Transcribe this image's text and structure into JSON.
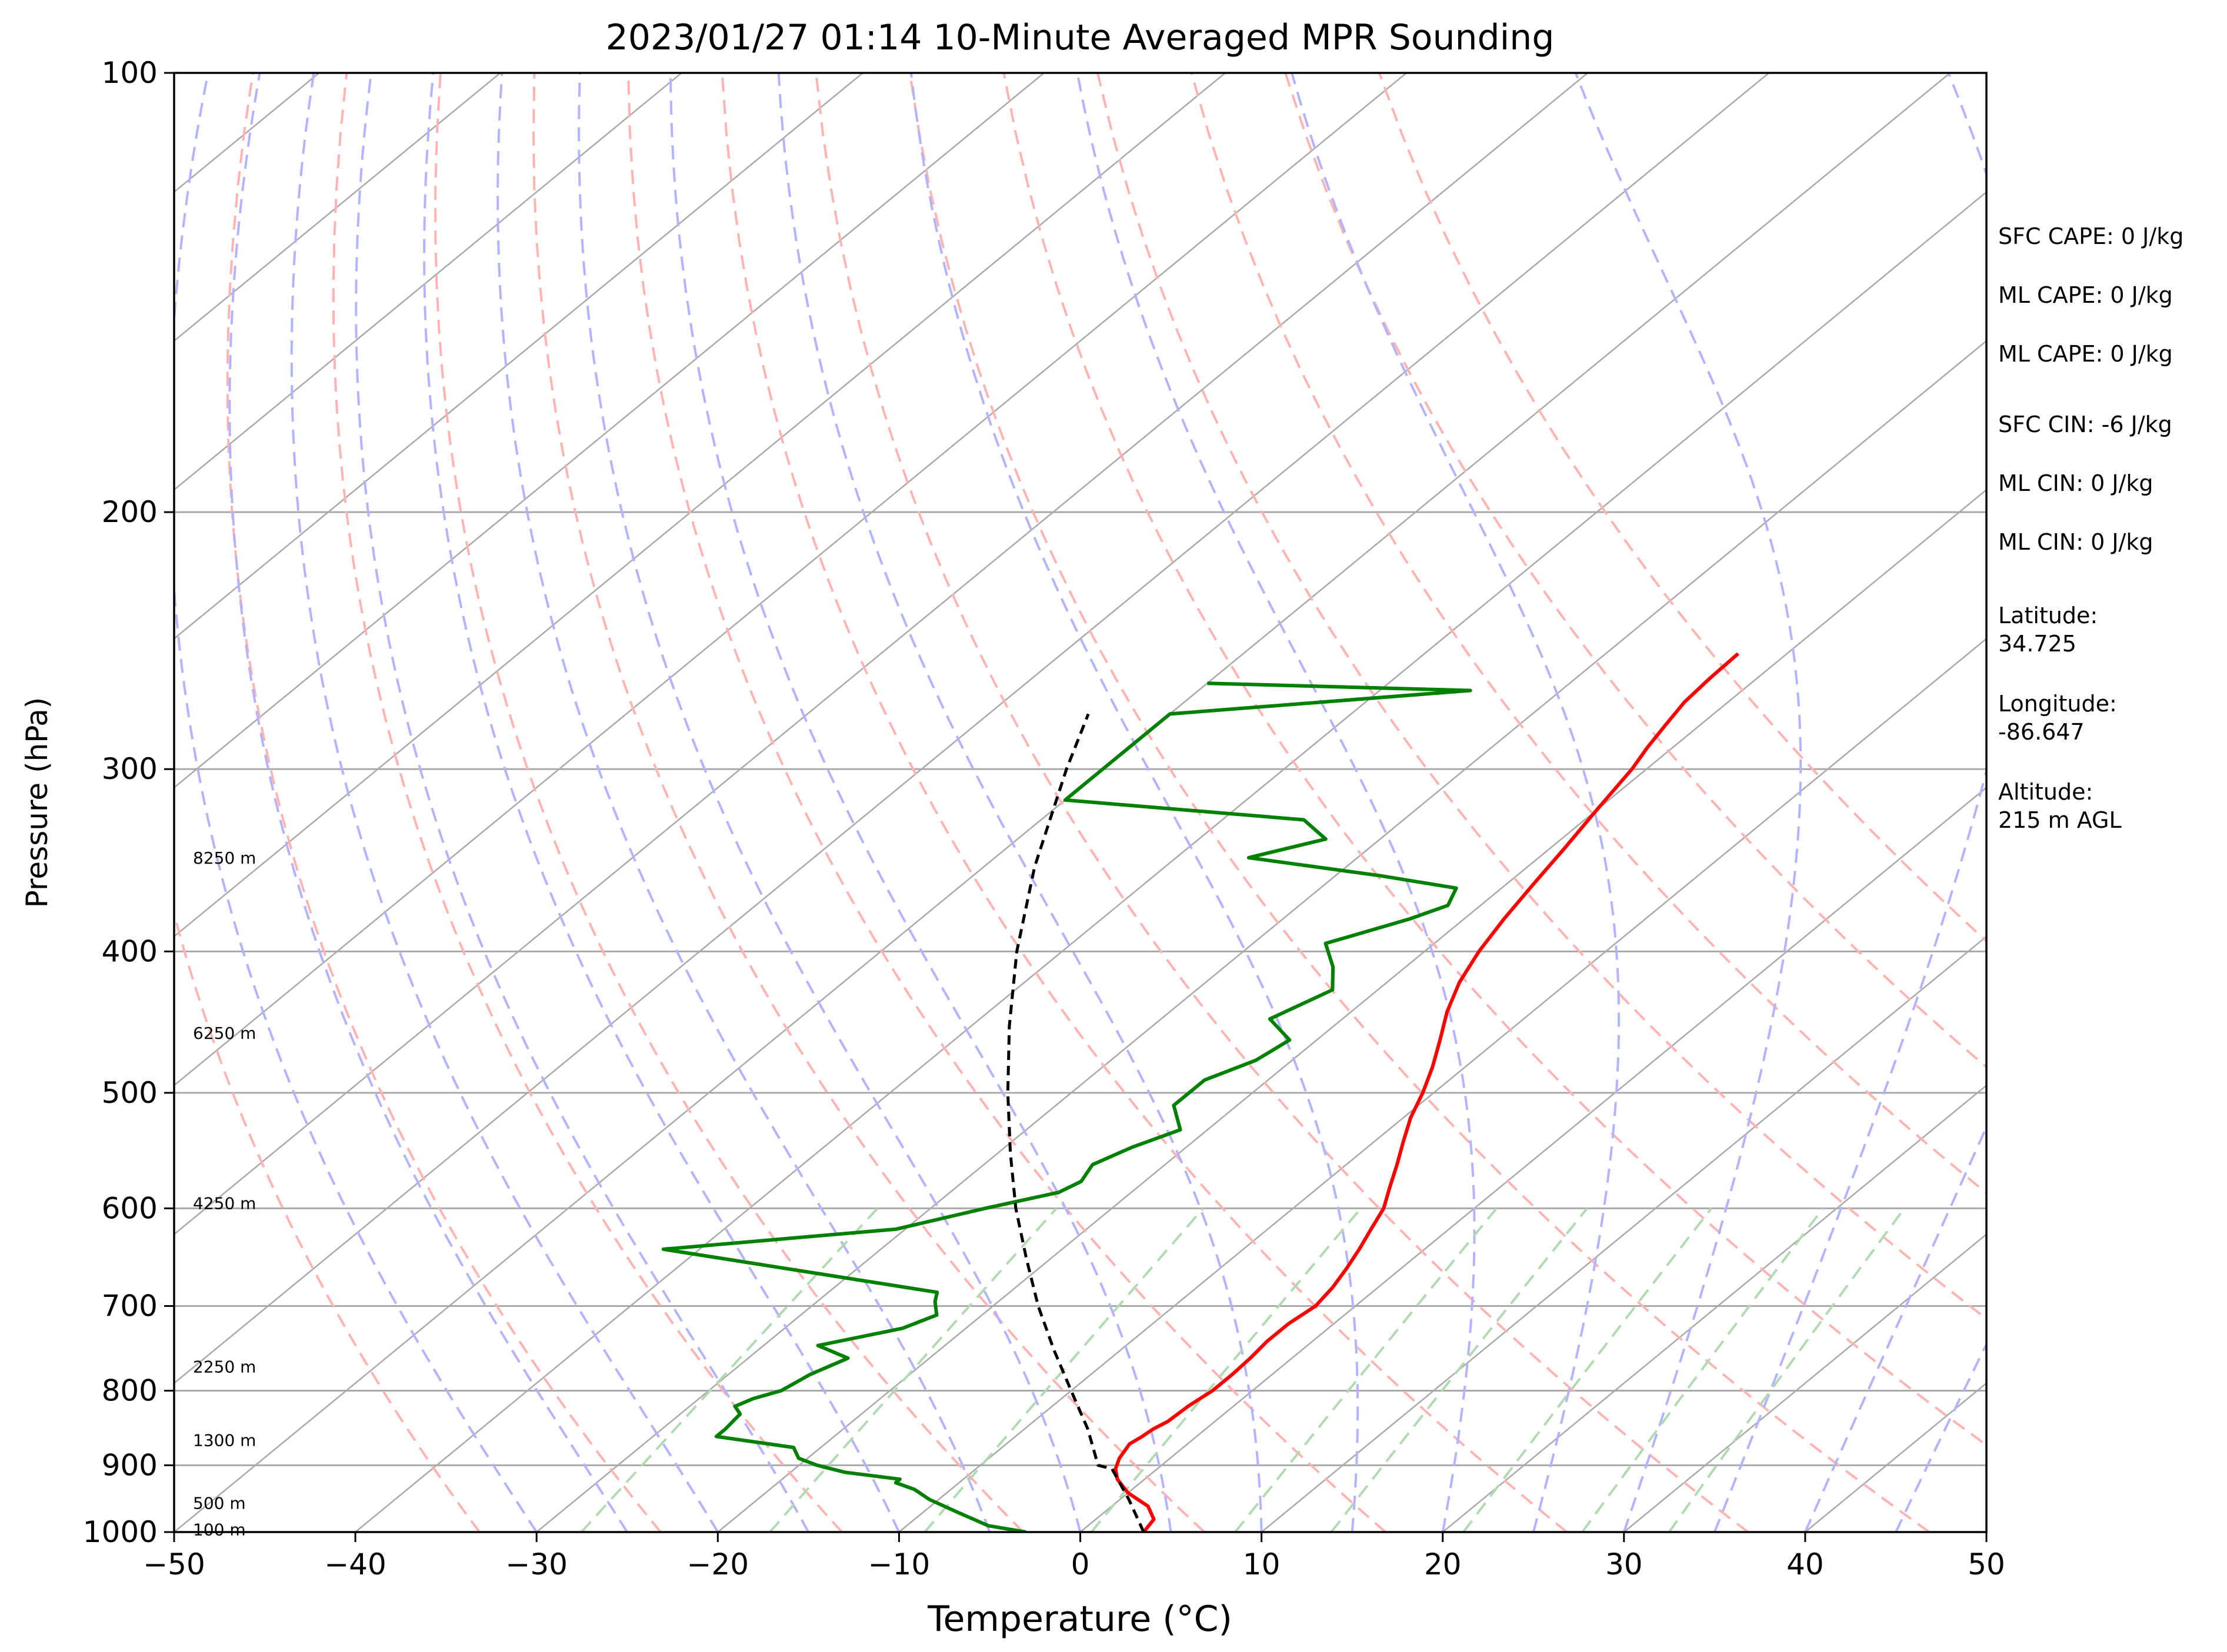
{
  "figure": {
    "title": "2023/01/27 01:14 10-Minute Averaged MPR Sounding"
  },
  "chart_data": {
    "type": "line",
    "subtype": "skew-T log-P diagram",
    "title": "2023/01/27 01:14 10-Minute Averaged MPR Sounding",
    "xlabel": "Temperature (°C)",
    "ylabel": "Pressure (hPa)",
    "xlim": [
      -50,
      50
    ],
    "ylim": [
      1000,
      100
    ],
    "y_scale": "log",
    "grid": true,
    "x_ticks": [
      "−50",
      "−40",
      "−30",
      "−20",
      "−10",
      "0",
      "10",
      "20",
      "30",
      "40",
      "50"
    ],
    "x_tick_values": [
      -50,
      -40,
      -30,
      -20,
      -10,
      0,
      10,
      20,
      30,
      40,
      50
    ],
    "y_ticks": [
      "100",
      "200",
      "300",
      "400",
      "500",
      "600",
      "700",
      "800",
      "900",
      "1000"
    ],
    "y_tick_values": [
      100,
      200,
      300,
      400,
      500,
      600,
      700,
      800,
      900,
      1000
    ],
    "height_labels": [
      {
        "text": "8250 m",
        "p": 345
      },
      {
        "text": "6250 m",
        "p": 455
      },
      {
        "text": "4250 m",
        "p": 595
      },
      {
        "text": "2250 m",
        "p": 770
      },
      {
        "text": "1300 m",
        "p": 865
      },
      {
        "text": "500 m",
        "p": 955
      },
      {
        "text": "100 m",
        "p": 996
      }
    ],
    "series": [
      {
        "role": "temperature",
        "color": "#ff0000",
        "points": [
          [
            1000,
            3.5
          ],
          [
            980,
            3.2
          ],
          [
            960,
            2.0
          ],
          [
            940,
            0.0
          ],
          [
            920,
            -1.5
          ],
          [
            905,
            -2.3
          ],
          [
            890,
            -2.8
          ],
          [
            870,
            -3.2
          ],
          [
            860,
            -3.0
          ],
          [
            850,
            -2.9
          ],
          [
            840,
            -2.6
          ],
          [
            820,
            -2.5
          ],
          [
            800,
            -2.2
          ],
          [
            780,
            -2.2
          ],
          [
            760,
            -2.3
          ],
          [
            740,
            -2.5
          ],
          [
            720,
            -2.5
          ],
          [
            700,
            -2.2
          ],
          [
            680,
            -2.5
          ],
          [
            660,
            -3.0
          ],
          [
            640,
            -3.6
          ],
          [
            620,
            -4.3
          ],
          [
            600,
            -5.0
          ],
          [
            580,
            -6.1
          ],
          [
            560,
            -7.2
          ],
          [
            540,
            -8.4
          ],
          [
            520,
            -9.6
          ],
          [
            500,
            -10.6
          ],
          [
            480,
            -11.8
          ],
          [
            460,
            -13.2
          ],
          [
            440,
            -14.7
          ],
          [
            420,
            -16.0
          ],
          [
            400,
            -17.0
          ],
          [
            380,
            -17.8
          ],
          [
            360,
            -18.5
          ],
          [
            340,
            -19.2
          ],
          [
            320,
            -20.0
          ],
          [
            300,
            -20.8
          ],
          [
            290,
            -21.4
          ],
          [
            280,
            -21.9
          ],
          [
            270,
            -22.4
          ],
          [
            260,
            -22.6
          ],
          [
            250,
            -22.7
          ]
        ]
      },
      {
        "role": "dewpoint",
        "color": "#008000",
        "points": [
          [
            1000,
            -3.0
          ],
          [
            990,
            -5.5
          ],
          [
            970,
            -8.0
          ],
          [
            950,
            -10.5
          ],
          [
            935,
            -12.0
          ],
          [
            925,
            -13.5
          ],
          [
            920,
            -13.5
          ],
          [
            910,
            -17.0
          ],
          [
            900,
            -19.0
          ],
          [
            890,
            -20.5
          ],
          [
            875,
            -21.5
          ],
          [
            860,
            -26.5
          ],
          [
            850,
            -26.5
          ],
          [
            830,
            -26.7
          ],
          [
            820,
            -27.5
          ],
          [
            810,
            -27.0
          ],
          [
            800,
            -26.0
          ],
          [
            780,
            -25.5
          ],
          [
            760,
            -24.5
          ],
          [
            745,
            -27.0
          ],
          [
            725,
            -23.5
          ],
          [
            710,
            -22.5
          ],
          [
            695,
            -23.5
          ],
          [
            685,
            -24.0
          ],
          [
            640,
            -42.0
          ],
          [
            620,
            -30.5
          ],
          [
            600,
            -27.0
          ],
          [
            585,
            -24.0
          ],
          [
            575,
            -23.5
          ],
          [
            560,
            -24.0
          ],
          [
            545,
            -23.0
          ],
          [
            530,
            -21.5
          ],
          [
            510,
            -23.5
          ],
          [
            490,
            -23.5
          ],
          [
            475,
            -22.0
          ],
          [
            460,
            -21.5
          ],
          [
            445,
            -24.0
          ],
          [
            425,
            -22.5
          ],
          [
            410,
            -24.0
          ],
          [
            395,
            -26.0
          ],
          [
            380,
            -23.0
          ],
          [
            372,
            -21.8
          ],
          [
            362,
            -22.5
          ],
          [
            355,
            -27.5
          ],
          [
            345,
            -36.0
          ],
          [
            335,
            -33.0
          ],
          [
            325,
            -35.5
          ],
          [
            315,
            -50.0
          ],
          [
            275,
            -50.0
          ],
          [
            265,
            -35.0
          ],
          [
            262,
            -50.0
          ]
        ]
      },
      {
        "role": "parcel path",
        "color": "#000000",
        "style": "dashed",
        "points": [
          [
            1000,
            3.5
          ],
          [
            950,
            0.5
          ],
          [
            905,
            -2.5
          ],
          [
            900,
            -3.5
          ],
          [
            850,
            -6.5
          ],
          [
            800,
            -10.0
          ],
          [
            750,
            -13.7
          ],
          [
            700,
            -17.5
          ],
          [
            650,
            -21.3
          ],
          [
            600,
            -25.3
          ],
          [
            550,
            -29.3
          ],
          [
            500,
            -33.5
          ],
          [
            450,
            -37.9
          ],
          [
            400,
            -42.5
          ],
          [
            350,
            -47.2
          ],
          [
            300,
            -52.0
          ],
          [
            275,
            -54.5
          ]
        ]
      }
    ],
    "background_lines": {
      "isotherms_c": [
        -140,
        -130,
        -120,
        -110,
        -100,
        -90,
        -80,
        -70,
        -60,
        -50,
        -40,
        -30,
        -20,
        -10,
        0,
        10,
        20,
        30,
        40,
        50
      ],
      "dry_adiabats_theta_k": [
        240,
        250,
        260,
        270,
        280,
        290,
        300,
        310,
        320,
        330,
        340,
        350,
        360,
        370
      ],
      "moist_adiabats_start_c": [
        -30,
        -25,
        -20,
        -15,
        -10,
        -5,
        0,
        5,
        10,
        15,
        20,
        25,
        30,
        35,
        40,
        45
      ],
      "mixing_ratio_lines": [
        0.4,
        1,
        2,
        4,
        7,
        10,
        16,
        24,
        32
      ]
    },
    "colors": {
      "isotherm": "#a9a9a9",
      "dry_adiabat": "#ffb3b3",
      "moist_adiabat": "#b3b3ff",
      "mixing_ratio": "#b2dab2",
      "isobar": "#a9a9a9"
    }
  },
  "side_panel": [
    {
      "label": "SFC CAPE: 0 J/kg"
    },
    {
      "label": "ML CAPE: 0 J/kg"
    },
    {
      "label": "ML CAPE: 0 J/kg"
    },
    {
      "label": "SFC CIN: -6 J/kg"
    },
    {
      "label": "ML CIN: 0 J/kg"
    },
    {
      "label": "ML CIN: 0 J/kg"
    },
    {
      "label": "Latitude:",
      "value": "34.725"
    },
    {
      "label": "Longitude:",
      "value": "-86.647"
    },
    {
      "label": "Altitude:",
      "value": "215 m AGL"
    }
  ]
}
